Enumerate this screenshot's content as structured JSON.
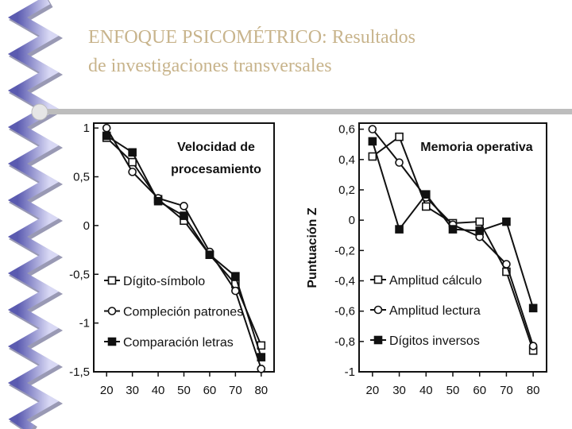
{
  "slide": {
    "title": [
      "ENFOQUE PSICOMÉTRICO: Resultados",
      "de investigaciones transversales"
    ]
  },
  "chart_data": [
    {
      "type": "line",
      "title": [
        "Velocidad de",
        "procesamiento"
      ],
      "x": [
        20,
        30,
        40,
        50,
        60,
        70,
        80
      ],
      "xlim": [
        15,
        85
      ],
      "xticks": [
        20,
        30,
        40,
        50,
        60,
        70,
        80
      ],
      "ylim": [
        -1.5,
        1.05
      ],
      "yticks": [
        1,
        {
          "value": 0.5,
          "label": "0,5"
        },
        0,
        {
          "value": -0.5,
          "label": "-0,5"
        },
        -1,
        {
          "value": -1.5,
          "label": "-1,5"
        }
      ],
      "series": [
        {
          "name": "Dígito-símbolo",
          "color": "#111111",
          "marker": "square-open",
          "values": [
            0.9,
            0.65,
            0.27,
            0.05,
            -0.3,
            -0.6,
            -1.23
          ]
        },
        {
          "name": "Compleción patrones",
          "color": "#111111",
          "marker": "circle-open",
          "values": [
            1.0,
            0.55,
            0.28,
            0.2,
            -0.27,
            -0.67,
            -1.47
          ]
        },
        {
          "name": "Comparación letras",
          "color": "#111111",
          "marker": "square-filled",
          "values": [
            0.92,
            0.75,
            0.25,
            0.1,
            -0.3,
            -0.52,
            -1.35
          ]
        }
      ]
    },
    {
      "type": "line",
      "title": [
        "Memoria operativa"
      ],
      "ylabel": "Puntuación Z",
      "x": [
        20,
        30,
        40,
        50,
        60,
        70,
        80
      ],
      "xlim": [
        15,
        85
      ],
      "xticks": [
        20,
        30,
        40,
        50,
        60,
        70,
        80
      ],
      "ylim": [
        -1,
        0.64
      ],
      "yticks": [
        {
          "value": 0.6,
          "label": "0,6"
        },
        {
          "value": 0.4,
          "label": "0,4"
        },
        {
          "value": 0.2,
          "label": "0,2"
        },
        0,
        {
          "value": -0.2,
          "label": "-0,2"
        },
        {
          "value": -0.4,
          "label": "-0,4"
        },
        {
          "value": -0.6,
          "label": "-0,6"
        },
        {
          "value": -0.8,
          "label": "-0,8"
        },
        -1
      ],
      "series": [
        {
          "name": "Amplitud cálculo",
          "color": "#111111",
          "marker": "square-open",
          "values": [
            0.42,
            0.55,
            0.09,
            -0.02,
            -0.01,
            -0.34,
            -0.86
          ]
        },
        {
          "name": "Amplitud lectura",
          "color": "#111111",
          "marker": "circle-open",
          "values": [
            0.6,
            0.38,
            0.15,
            -0.03,
            -0.11,
            -0.29,
            -0.83
          ]
        },
        {
          "name": "Dígitos inversos",
          "color": "#111111",
          "marker": "square-filled",
          "values": [
            0.52,
            -0.06,
            0.17,
            -0.06,
            -0.07,
            -0.01,
            -0.58
          ]
        }
      ]
    }
  ]
}
